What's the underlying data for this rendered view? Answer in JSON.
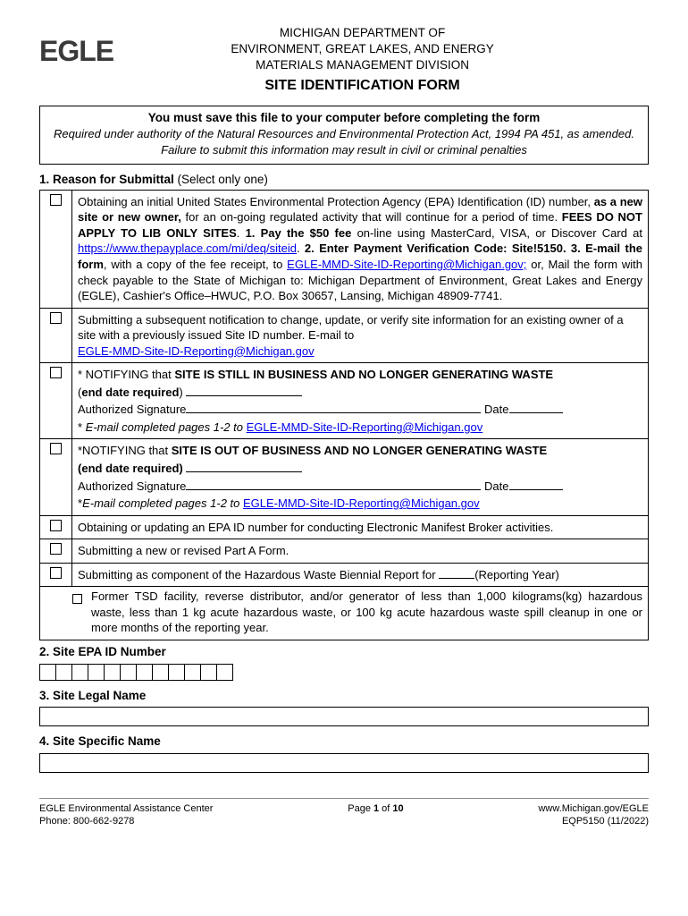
{
  "logo_text": "EGLE",
  "header": {
    "line1": "MICHIGAN DEPARTMENT OF",
    "line2": "ENVIRONMENT, GREAT LAKES, AND ENERGY",
    "line3": "MATERIALS MANAGEMENT DIVISION",
    "title": "SITE IDENTIFICATION FORM"
  },
  "notice": {
    "main": "You must save this file to your computer before completing the form",
    "sub": "Required under authority of the Natural Resources and Environmental Protection Act, 1994 PA 451, as amended. Failure to submit this information may result in civil or criminal penalties"
  },
  "section1": {
    "num_title": "1. Reason for Submittal",
    "paren": " (Select only one)"
  },
  "opt1": {
    "a": "Obtaining an initial United States Environmental Protection Agency (EPA) Identification (ID) number, ",
    "b": "as a new site or new owner,",
    "c": " for an on-going regulated activity that will continue for a period of time. ",
    "d": "FEES DO NOT APPLY TO LIB ONLY SITES",
    "e": ". ",
    "f": "1. Pay the $50 fee",
    "g": " on-line using MasterCard, VISA, or Discover Card at ",
    "link1": "https://www.thepayplace.com/mi/deq/siteid",
    "h": ". ",
    "i": "2. Enter Payment Verification Code: Site!5150. 3. E-mail the form",
    "j": ", with a copy of the fee receipt, to ",
    "link2": "EGLE-MMD-Site-ID-Reporting@Michigan.gov;",
    "k": " or, Mail the form with check payable to the State of Michigan to: Michigan Department of Environment, Great Lakes and Energy (EGLE), Cashier's Office–HWUC, P.O. Box 30657, Lansing, Michigan 48909-7741."
  },
  "opt2": {
    "a": "Submitting a subsequent notification to change, update, or verify site information for an existing owner of a site with a previously issued Site ID number. E-mail to",
    "link": "EGLE-MMD-Site-ID-Reporting@Michigan.gov"
  },
  "opt3": {
    "pre": "* NOTIFYING that ",
    "bold": "SITE IS STILL IN BUSINESS AND NO LONGER GENERATING WASTE",
    "paren_open": "(",
    "end_date": "end date required",
    "paren_close": ") ",
    "auth": "Authorized Signature",
    "date": " Date",
    "email_pre": "* ",
    "email_ital": "E-mail completed pages 1-2 to ",
    "link": "EGLE-MMD-Site-ID-Reporting@Michigan.gov"
  },
  "opt4": {
    "pre": "*NOTIFYING that ",
    "bold": "SITE IS OUT OF BUSINESS AND NO LONGER GENERATING WASTE",
    "paren_open": "(",
    "end_date": "end date required",
    "paren_close": ") ",
    "auth": "Authorized Signature",
    "date": " Date",
    "email_pre": "*",
    "email_ital": "E-mail completed pages 1-2 to ",
    "link": "EGLE-MMD-Site-ID-Reporting@Michigan.gov"
  },
  "opt5": "Obtaining or updating an EPA ID number for conducting Electronic Manifest Broker activities.",
  "opt6": "Submitting a new or revised Part A Form.",
  "opt7": {
    "a": "Submitting as component of the Hazardous Waste Biennial Report for ",
    "b": "(Reporting Year)"
  },
  "opt8": "Former TSD facility, reverse distributor, and/or generator of less than 1,000 kilograms(kg)  hazardous waste, less than 1 kg acute hazardous waste, or 100 kg acute hazardous waste spill cleanup in one or more months of the reporting year.",
  "section2": "2. Site EPA ID Number",
  "epa_boxes": 12,
  "section3": "3. Site Legal Name",
  "section4": "4. Site Specific Name",
  "footer": {
    "left1": "EGLE Environmental Assistance Center",
    "left2": "Phone: 800-662-9278",
    "center_pre": "Page ",
    "center_num": "1",
    "center_post": " of ",
    "center_total": "10",
    "right1": "www.Michigan.gov/EGLE",
    "right2": "EQP5150 (11/2022)"
  },
  "style": {
    "link_color": "#0000ee",
    "bg": "#ffffff",
    "text": "#000000",
    "logo_color": "#3a3a3a"
  }
}
